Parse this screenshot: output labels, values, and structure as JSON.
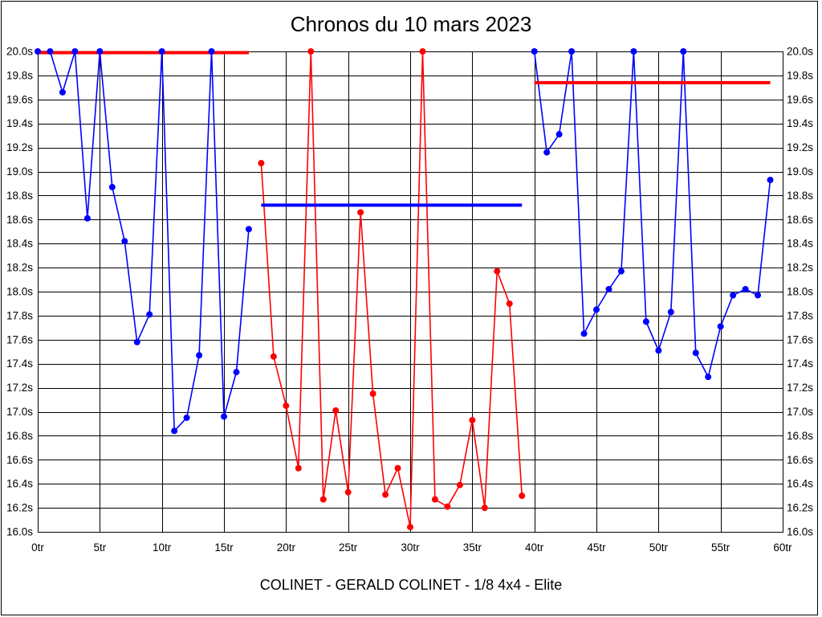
{
  "title": "Chronos du 10 mars 2023",
  "caption": "COLINET - GERALD COLINET - 1/8 4x4 - Elite",
  "chart_data": {
    "type": "line",
    "title": "Chronos du 10 mars 2023",
    "xlabel": "",
    "ylabel": "",
    "x_unit": "tr",
    "y_unit": "s",
    "xlim": [
      0,
      60
    ],
    "ylim": [
      16.0,
      20.0
    ],
    "x_tick_step": 5,
    "y_tick_step": 0.2,
    "grid": true,
    "legend": "none",
    "x_tick_labels": [
      "0tr",
      "5tr",
      "10tr",
      "15tr",
      "20tr",
      "25tr",
      "30tr",
      "35tr",
      "40tr",
      "45tr",
      "50tr",
      "55tr",
      "60tr"
    ],
    "y_tick_labels": [
      "20.0s",
      "19.8s",
      "19.6s",
      "19.4s",
      "19.2s",
      "19.0s",
      "18.8s",
      "18.6s",
      "18.4s",
      "18.2s",
      "18.0s",
      "17.8s",
      "17.6s",
      "17.4s",
      "17.2s",
      "17.0s",
      "16.8s",
      "16.6s",
      "16.4s",
      "16.2s",
      "16.0s"
    ],
    "series": [
      {
        "name": "run-1-blue",
        "color": "#0000ff",
        "x_start": 0,
        "values": [
          20.0,
          20.0,
          19.66,
          20.0,
          18.61,
          20.0,
          18.87,
          18.42,
          17.58,
          17.81,
          20.0,
          16.84,
          16.95,
          17.47,
          20.0,
          16.96,
          17.33,
          18.52
        ]
      },
      {
        "name": "run-2-red",
        "color": "#ff0000",
        "x_start": 18,
        "values": [
          19.07,
          17.46,
          17.05,
          16.53,
          20.0,
          16.27,
          17.01,
          16.33,
          18.66,
          17.15,
          16.31,
          16.53,
          16.04,
          20.0,
          16.27,
          16.21,
          16.39,
          16.93,
          16.2,
          18.17,
          17.9,
          16.3
        ]
      },
      {
        "name": "run-3-blue",
        "color": "#0000ff",
        "x_start": 40,
        "values": [
          20.0,
          19.16,
          19.31,
          20.0,
          17.65,
          17.85,
          18.02,
          18.17,
          20.0,
          17.75,
          17.51,
          17.83,
          20.0,
          17.49,
          17.29,
          17.71,
          17.97,
          18.02,
          17.97,
          18.93
        ]
      }
    ],
    "reference_lines": [
      {
        "name": "ref-line-segment-1-red",
        "color": "#ff0000",
        "value": 19.99,
        "x_start": 0,
        "x_end": 17
      },
      {
        "name": "ref-line-segment-2-blue",
        "color": "#0000ff",
        "value": 18.72,
        "x_start": 18,
        "x_end": 39
      },
      {
        "name": "ref-line-segment-3-red",
        "color": "#ff0000",
        "value": 19.74,
        "x_start": 40,
        "x_end": 59
      }
    ],
    "colors": {
      "blue_series": "#0000ff",
      "red_series": "#ff0000",
      "grid": "#000000",
      "text": "#000000",
      "background": "#ffffff"
    }
  }
}
